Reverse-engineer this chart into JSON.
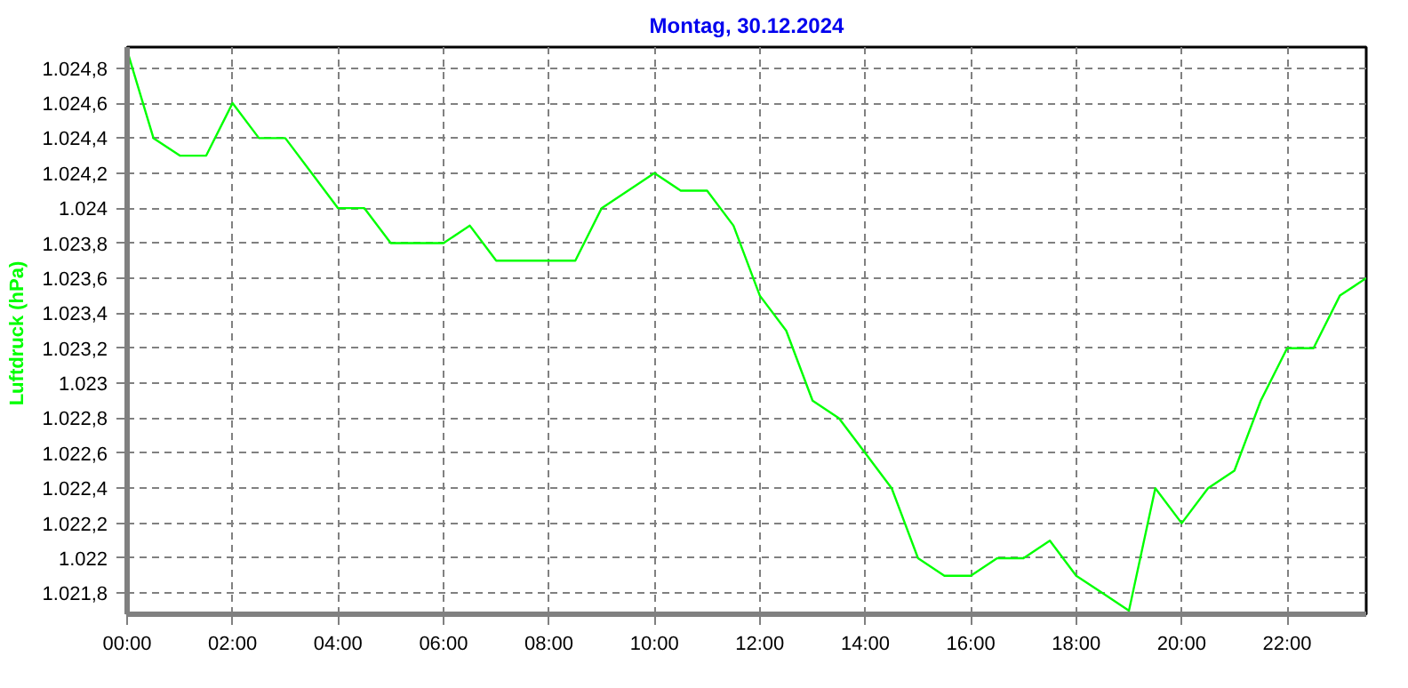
{
  "chart_data": {
    "type": "line",
    "title": "Montag, 30.12.2024",
    "ylabel": "Luftdruck  (hPa)",
    "x": [
      0,
      0.5,
      1,
      1.5,
      2,
      2.5,
      3,
      3.5,
      4,
      4.5,
      5,
      5.5,
      6,
      6.5,
      7,
      7.5,
      8,
      8.5,
      9,
      9.5,
      10,
      10.5,
      11,
      11.5,
      12,
      12.5,
      13,
      13.5,
      14,
      14.5,
      15,
      15.5,
      16,
      16.5,
      17,
      17.5,
      18,
      18.5,
      19,
      19.5,
      20,
      20.5,
      21,
      21.5,
      22,
      22.5,
      23,
      23.5
    ],
    "series": [
      {
        "color": "#00ff00",
        "values": [
          1024.9,
          1024.4,
          1024.3,
          1024.3,
          1024.6,
          1024.4,
          1024.4,
          1024.2,
          1024.0,
          1024.0,
          1023.8,
          1023.8,
          1023.8,
          1023.9,
          1023.7,
          1023.7,
          1023.7,
          1023.7,
          1024.0,
          1024.1,
          1024.2,
          1024.1,
          1024.1,
          1023.9,
          1023.5,
          1023.3,
          1022.9,
          1022.8,
          1022.6,
          1022.4,
          1022.0,
          1021.9,
          1021.9,
          1022.0,
          1022.0,
          1022.1,
          1021.9,
          1021.8,
          1021.7,
          1022.4,
          1022.2,
          1022.4,
          1022.5,
          1022.9,
          1023.2,
          1023.2,
          1023.5,
          1023.6
        ]
      }
    ],
    "xlim": [
      0,
      23.5
    ],
    "ylim": [
      1021.68,
      1024.92
    ],
    "xticks": [
      {
        "value": 0,
        "label": "00:00"
      },
      {
        "value": 2,
        "label": "02:00"
      },
      {
        "value": 4,
        "label": "04:00"
      },
      {
        "value": 6,
        "label": "06:00"
      },
      {
        "value": 8,
        "label": "08:00"
      },
      {
        "value": 10,
        "label": "10:00"
      },
      {
        "value": 12,
        "label": "12:00"
      },
      {
        "value": 14,
        "label": "14:00"
      },
      {
        "value": 16,
        "label": "16:00"
      },
      {
        "value": 18,
        "label": "18:00"
      },
      {
        "value": 20,
        "label": "20:00"
      },
      {
        "value": 22,
        "label": "22:00"
      }
    ],
    "yticks": [
      {
        "value": 1021.8,
        "label": "1.021,8"
      },
      {
        "value": 1022.0,
        "label": "1.022"
      },
      {
        "value": 1022.2,
        "label": "1.022,2"
      },
      {
        "value": 1022.4,
        "label": "1.022,4"
      },
      {
        "value": 1022.6,
        "label": "1.022,6"
      },
      {
        "value": 1022.8,
        "label": "1.022,8"
      },
      {
        "value": 1023.0,
        "label": "1.023"
      },
      {
        "value": 1023.2,
        "label": "1.023,2"
      },
      {
        "value": 1023.4,
        "label": "1.023,4"
      },
      {
        "value": 1023.6,
        "label": "1.023,6"
      },
      {
        "value": 1023.8,
        "label": "1.023,8"
      },
      {
        "value": 1024.0,
        "label": "1.024"
      },
      {
        "value": 1024.2,
        "label": "1.024,2"
      },
      {
        "value": 1024.4,
        "label": "1.024,4"
      },
      {
        "value": 1024.6,
        "label": "1.024,6"
      },
      {
        "value": 1024.8,
        "label": "1.024,8"
      }
    ],
    "grid": true,
    "marker": "none",
    "line_style": "solid"
  }
}
